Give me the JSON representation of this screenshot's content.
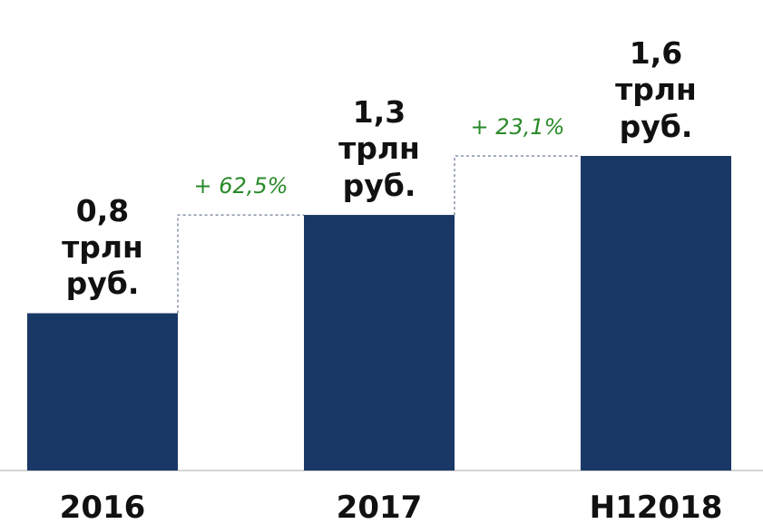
{
  "chart_data": {
    "type": "bar",
    "categories": [
      "2016",
      "2017",
      "H12018"
    ],
    "values": [
      0.8,
      1.3,
      1.6
    ],
    "value_labels": [
      "0,8 трлн руб.",
      "1,3 трлн руб.",
      "1,6 трлн руб."
    ],
    "color": "#1a3866",
    "annotations": [
      {
        "text": "+ 62,5%",
        "color": "#2a8a2a"
      },
      {
        "text": "+ 23,1%",
        "color": "#2a8a2a"
      }
    ]
  }
}
